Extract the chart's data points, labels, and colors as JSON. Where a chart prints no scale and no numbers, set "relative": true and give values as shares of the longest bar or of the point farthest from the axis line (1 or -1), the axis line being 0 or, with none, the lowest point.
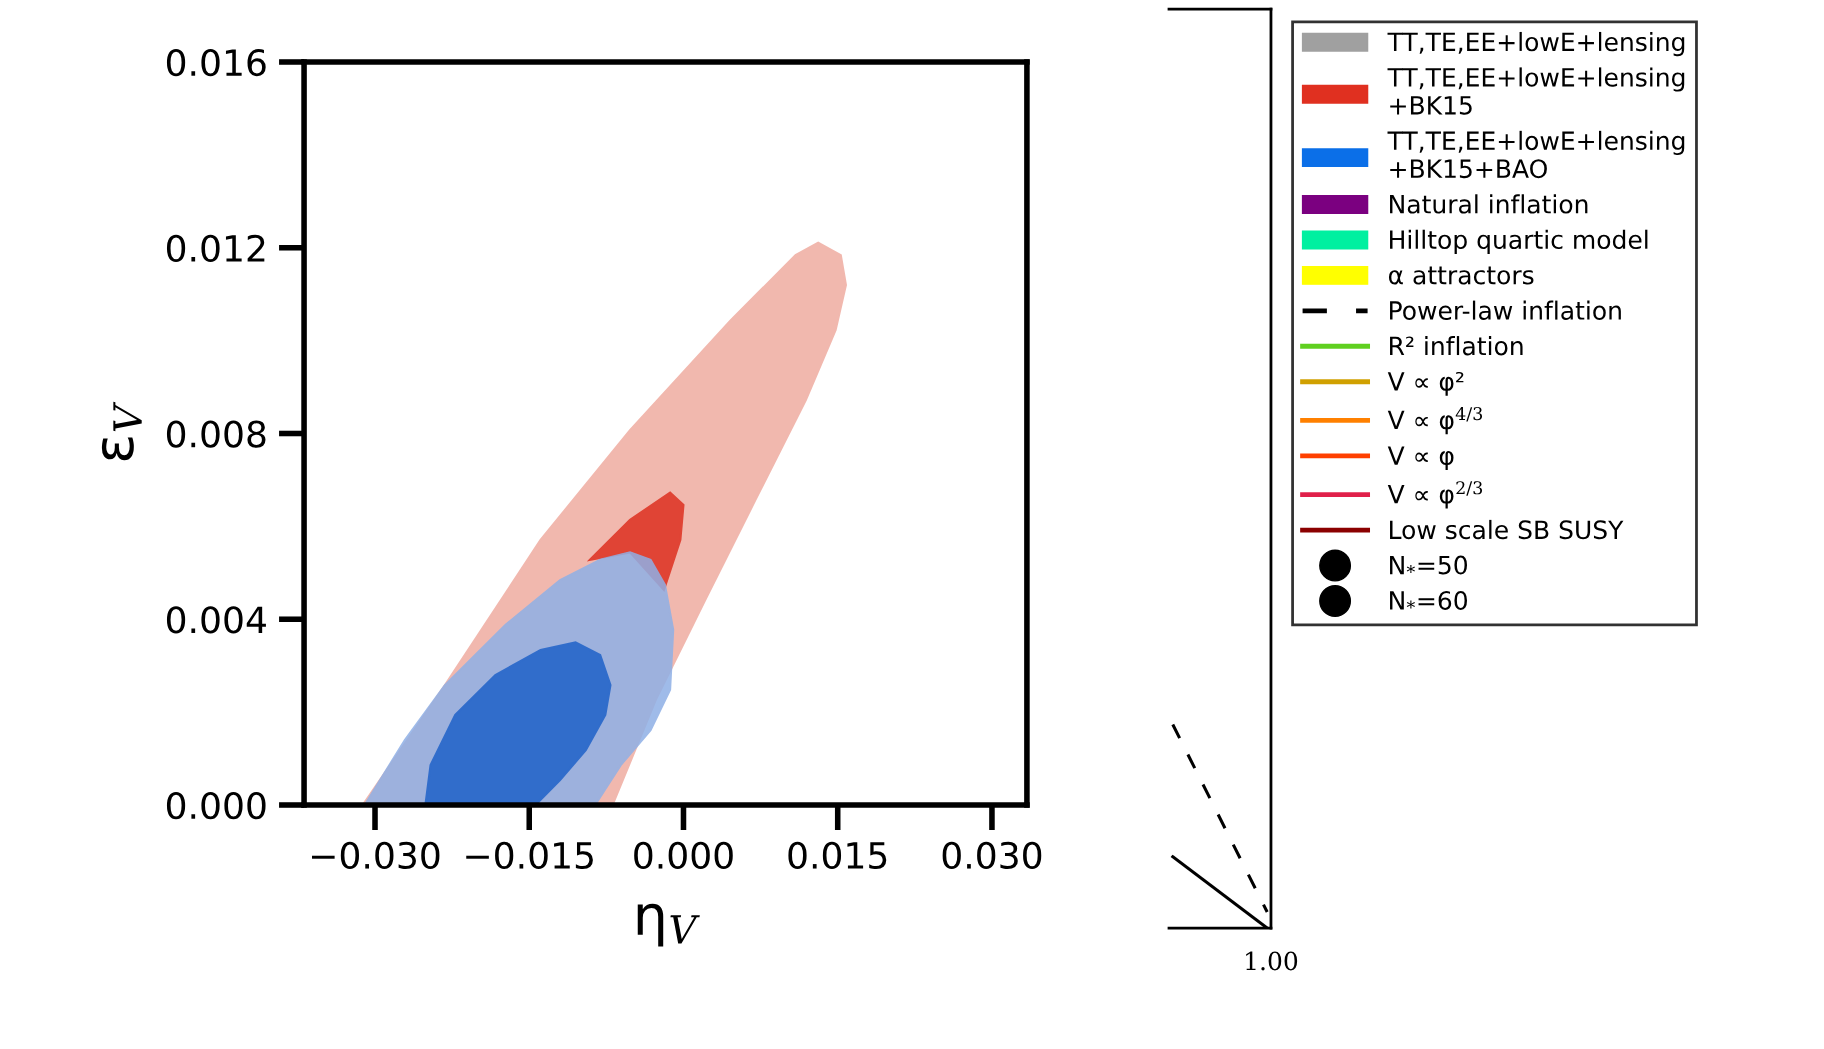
{
  "chart_data": [
    {
      "type": "area",
      "xlabel": "η$_{V}$",
      "ylabel": "ε$_{V}$",
      "xlim": [
        -0.0369,
        0.0334
      ],
      "ylim": [
        0,
        0.016
      ],
      "xticks": [
        {
          "value": -0.03,
          "label": "−0.030"
        },
        {
          "value": -0.015,
          "label": "−0.015"
        },
        {
          "value": 0,
          "label": "0.000"
        },
        0.015,
        {
          "value": 0.03,
          "label": "0.030"
        }
      ],
      "yticks": [
        {
          "value": 0,
          "label": "0.000"
        },
        0.004,
        0.008,
        0.012,
        0.016
      ],
      "grid": false,
      "legend": "right",
      "series": [
        {
          "color": "#efaca1",
          "x": [
            -0.0312,
            -0.0232,
            -0.0139,
            -0.0052,
            0.0046,
            0.0109,
            0.0131,
            0.0153,
            0.0158,
            0.0148,
            0.0119,
            0.007,
            0.0021,
            -0.0027,
            -0.0069
          ],
          "values": [
            0,
            0.00258,
            0.00571,
            0.00807,
            0.01044,
            0.01184,
            0.01211,
            0.01184,
            0.0112,
            0.01023,
            0.00872,
            0.00657,
            0.00441,
            0.00226,
            0
          ]
        },
        {
          "color": "#de3020",
          "x": [
            -0.0091,
            -0.0052,
            -0.0013,
            0.0,
            -0.0003,
            -0.0019,
            -0.0052
          ],
          "values": [
            0.00528,
            0.00614,
            0.00673,
            0.00646,
            0.00571,
            0.00463,
            0.00544
          ]
        },
        {
          "color": "#8fb0e6",
          "x": [
            -0.031,
            -0.0271,
            -0.0232,
            -0.0173,
            -0.012,
            -0.0081,
            -0.0052,
            -0.0032,
            -0.0018,
            -0.001,
            -0.0013,
            -0.0032,
            -0.0061,
            -0.0086
          ],
          "values": [
            0,
            0.0014,
            0.00258,
            0.00388,
            0.00484,
            0.00528,
            0.00544,
            0.00528,
            0.00474,
            0.00377,
            0.00248,
            0.00161,
            0.00086,
            0
          ]
        },
        {
          "color": "#1f62c9",
          "x": [
            -0.0251,
            -0.0246,
            -0.0222,
            -0.0183,
            -0.0139,
            -0.0105,
            -0.0081,
            -0.0071,
            -0.0076,
            -0.0095,
            -0.012,
            -0.0144
          ],
          "values": [
            0,
            0.00086,
            0.00194,
            0.0028,
            0.00334,
            0.0035,
            0.00323,
            0.00258,
            0.00194,
            0.00118,
            0.00054,
            0
          ]
        },
        {
          "type": "area",
          "name": "TT,TE,EE+lowE+lensing",
          "color": "#a0a0a0"
        },
        {
          "type": "area",
          "name": "TT,TE,EE+lowE+lensing\n+BK15",
          "color": "#e03020"
        },
        {
          "type": "area",
          "name": "TT,TE,EE+lowE+lensing\n+BK15+BAO",
          "color": "#0b6fe8"
        },
        {
          "type": "area",
          "name": "Natural inflation",
          "color": "#7b0080"
        },
        {
          "type": "area",
          "name": "Hilltop quartic model",
          "color": "#00f0a0"
        },
        {
          "type": "area",
          "name": "α attractors",
          "color": "#ffff00"
        },
        {
          "type": "line",
          "name": "Power-law inflation",
          "color": "#000000",
          "line_style": "dashed"
        },
        {
          "type": "line",
          "name": "R² inflation",
          "color": "#60d020"
        },
        {
          "type": "line",
          "name": "V ∝ φ²",
          "color": "#d0a000"
        },
        {
          "type": "line",
          "name": "V ∝ φ$^{4/3}$",
          "color": "#ff8000"
        },
        {
          "type": "line",
          "name": "V ∝ φ",
          "color": "#ff4000"
        },
        {
          "type": "line",
          "name": "V ∝ φ$^{2/3}$",
          "color": "#e0204a"
        },
        {
          "type": "line",
          "name": "Low scale SB SUSY",
          "color": "#8b0000"
        },
        {
          "type": "scatter",
          "name": "N$_{*}$=50",
          "color": "#000000",
          "marker": "circle"
        },
        {
          "type": "scatter",
          "name": "N$_{*}$=60",
          "color": "#000000",
          "marker": "circle"
        }
      ]
    },
    {
      "type": "line",
      "relative": true,
      "annotations": [
        "1.00"
      ],
      "categories": [
        null,
        null
      ],
      "grid": false,
      "series": [
        {
          "color": "#000000",
          "line_style": "dashed",
          "values": [
            1,
            0.079
          ]
        },
        {
          "color": "#000000",
          "line_style": "solid",
          "values": [
            0.35,
            0
          ]
        }
      ]
    }
  ]
}
